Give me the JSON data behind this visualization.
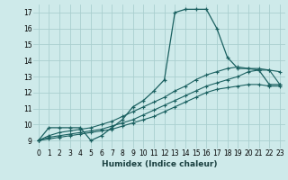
{
  "title": "",
  "xlabel": "Humidex (Indice chaleur)",
  "bg_color": "#ceeaea",
  "grid_color": "#aacfcf",
  "line_color": "#1a6060",
  "line1_x": [
    0,
    1,
    2,
    3,
    4,
    5,
    6,
    7,
    8,
    9,
    10,
    11,
    12,
    13,
    14,
    15,
    16,
    17,
    18,
    19,
    20,
    21,
    22,
    23
  ],
  "line1_y": [
    9.0,
    9.8,
    9.8,
    9.8,
    9.8,
    9.0,
    9.3,
    9.8,
    10.3,
    11.1,
    11.5,
    12.1,
    12.8,
    17.0,
    17.2,
    17.2,
    17.2,
    16.0,
    14.2,
    13.5,
    13.5,
    13.4,
    12.5,
    12.5
  ],
  "line2_x": [
    0,
    1,
    2,
    3,
    4,
    5,
    6,
    7,
    8,
    9,
    10,
    11,
    12,
    13,
    14,
    15,
    16,
    17,
    18,
    19,
    20,
    21,
    22,
    23
  ],
  "line2_y": [
    9.0,
    9.1,
    9.2,
    9.3,
    9.4,
    9.5,
    9.6,
    9.7,
    9.9,
    10.1,
    10.3,
    10.5,
    10.8,
    11.1,
    11.4,
    11.7,
    12.0,
    12.2,
    12.3,
    12.4,
    12.5,
    12.5,
    12.4,
    12.4
  ],
  "line3_x": [
    0,
    1,
    2,
    3,
    4,
    5,
    6,
    7,
    8,
    9,
    10,
    11,
    12,
    13,
    14,
    15,
    16,
    17,
    18,
    19,
    20,
    21,
    22,
    23
  ],
  "line3_y": [
    9.0,
    9.2,
    9.3,
    9.4,
    9.5,
    9.6,
    9.7,
    9.9,
    10.1,
    10.3,
    10.6,
    10.9,
    11.2,
    11.5,
    11.8,
    12.1,
    12.4,
    12.6,
    12.8,
    13.0,
    13.3,
    13.4,
    13.4,
    13.3
  ],
  "line4_x": [
    0,
    1,
    2,
    3,
    4,
    5,
    6,
    7,
    8,
    9,
    10,
    11,
    12,
    13,
    14,
    15,
    16,
    17,
    18,
    19,
    20,
    21,
    22,
    23
  ],
  "line4_y": [
    9.0,
    9.3,
    9.5,
    9.6,
    9.7,
    9.8,
    10.0,
    10.2,
    10.5,
    10.8,
    11.1,
    11.4,
    11.7,
    12.1,
    12.4,
    12.8,
    13.1,
    13.3,
    13.5,
    13.6,
    13.5,
    13.5,
    13.4,
    12.5
  ],
  "xlim": [
    -0.5,
    23.5
  ],
  "ylim": [
    8.5,
    17.5
  ],
  "yticks": [
    9,
    10,
    11,
    12,
    13,
    14,
    15,
    16,
    17
  ],
  "xticks": [
    0,
    1,
    2,
    3,
    4,
    5,
    6,
    7,
    8,
    9,
    10,
    11,
    12,
    13,
    14,
    15,
    16,
    17,
    18,
    19,
    20,
    21,
    22,
    23
  ]
}
